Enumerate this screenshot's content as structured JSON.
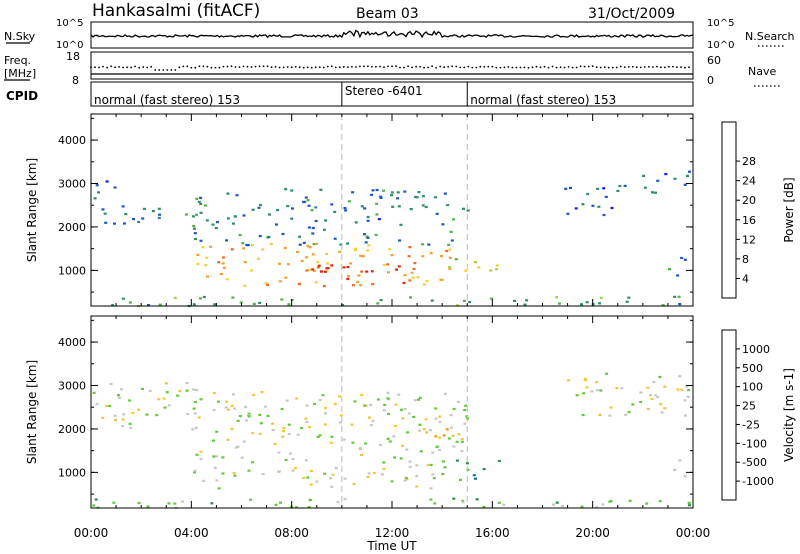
{
  "header": {
    "station": "Hankasalmi (fitACF)",
    "beam": "Beam 03",
    "date": "31/Oct/2009"
  },
  "strips": {
    "nsky_label": "N.Sky",
    "nsky_ticks": [
      "10^5",
      "10^0"
    ],
    "nsearch_label": "N.Search",
    "nsearch_ticks": [
      "10^5",
      "10^0"
    ],
    "freq_label": "Freq.",
    "freq_unit": "[MHz]",
    "freq_ticks": [
      "18",
      "8"
    ],
    "nave_label": "Nave",
    "nave_ticks": [
      "60",
      "0"
    ],
    "cpid_label": "CPID",
    "modes": [
      {
        "label": "normal (fast stereo) 153",
        "start_hour": 0,
        "end_hour": 10
      },
      {
        "label": "Stereo -6401",
        "start_hour": 10,
        "end_hour": 15
      },
      {
        "label": "normal (fast stereo) 153",
        "start_hour": 15,
        "end_hour": 24
      }
    ]
  },
  "chart_data": [
    {
      "type": "heatmap",
      "panel": "power",
      "xlabel": "Time UT",
      "ylabel": "Slant Range [km]",
      "x_ticks": [
        "00:00",
        "04:00",
        "08:00",
        "12:00",
        "16:00",
        "20:00",
        "00:00"
      ],
      "y_ticks": [
        "1000",
        "2000",
        "3000",
        "4000"
      ],
      "xlim": [
        0,
        24
      ],
      "ylim": [
        180,
        4600
      ],
      "colorbar": {
        "label": "Power [dB]",
        "ticks": [
          "4",
          "8",
          "12",
          "16",
          "20",
          "24",
          "28"
        ],
        "colors": [
          "#0a1af0",
          "#1e56c8",
          "#2f8c6e",
          "#56b04a",
          "#a8d23a",
          "#f0d23a",
          "#f5a02a",
          "#f06a1e",
          "#e02810"
        ]
      },
      "echo_regions": [
        {
          "t0": 0.0,
          "t1": 4.2,
          "r0": 2050,
          "r1": 2500,
          "level": 0.25
        },
        {
          "t0": 0.0,
          "t1": 1.0,
          "r0": 2500,
          "r1": 3100,
          "level": 0.15
        },
        {
          "t0": 4.0,
          "t1": 15.0,
          "r0": 1600,
          "r1": 2900,
          "level": 0.25
        },
        {
          "t0": 4.2,
          "t1": 14.5,
          "r0": 650,
          "r1": 1650,
          "level": 0.7
        },
        {
          "t0": 8.5,
          "t1": 12.5,
          "r0": 700,
          "r1": 1200,
          "level": 0.95
        },
        {
          "t0": 14.2,
          "t1": 16.3,
          "r0": 850,
          "r1": 1300,
          "level": 0.55
        },
        {
          "t0": 18.8,
          "t1": 21.5,
          "r0": 2300,
          "r1": 3000,
          "level": 0.2
        },
        {
          "t0": 21.5,
          "t1": 23.8,
          "r0": 2800,
          "r1": 3300,
          "level": 0.2
        },
        {
          "t0": 23.0,
          "t1": 24.0,
          "r0": 900,
          "r1": 1350,
          "level": 0.3
        },
        {
          "t0": 0.0,
          "t1": 24.0,
          "r0": 200,
          "r1": 420,
          "level": 0.35
        }
      ]
    },
    {
      "type": "heatmap",
      "panel": "velocity",
      "xlabel": "Time UT",
      "ylabel": "Slant Range [km]",
      "x_ticks": [
        "00:00",
        "04:00",
        "08:00",
        "12:00",
        "16:00",
        "20:00",
        "00:00"
      ],
      "y_ticks": [
        "1000",
        "2000",
        "3000",
        "4000"
      ],
      "xlim": [
        0,
        24
      ],
      "ylim": [
        180,
        4600
      ],
      "colorbar": {
        "label": "Velocity [m s-1]",
        "ticks": [
          "1000",
          "500",
          "100",
          "25",
          "-25",
          "-100",
          "-500",
          "-1000"
        ],
        "colors": [
          "#1432c8",
          "#1e6ea0",
          "#2f8c50",
          "#64c83c",
          "#c8c8c0",
          "#f0c83c",
          "#f0961e",
          "#f05a14",
          "#e01e0a"
        ]
      },
      "echo_regions": [
        {
          "t0": 0.0,
          "t1": 4.2,
          "r0": 2050,
          "r1": 3100,
          "level": 0.5
        },
        {
          "t0": 4.0,
          "t1": 15.0,
          "r0": 650,
          "r1": 2900,
          "level": 0.5
        },
        {
          "t0": 13.0,
          "t1": 15.0,
          "r0": 1800,
          "r1": 2100,
          "level": 0.72
        },
        {
          "t0": 14.4,
          "t1": 16.3,
          "r0": 850,
          "r1": 1300,
          "level": 0.28
        },
        {
          "t0": 18.8,
          "t1": 23.8,
          "r0": 2300,
          "r1": 3300,
          "level": 0.5
        },
        {
          "t0": 23.0,
          "t1": 24.0,
          "r0": 900,
          "r1": 1350,
          "level": 0.5
        },
        {
          "t0": 0.0,
          "t1": 24.0,
          "r0": 200,
          "r1": 420,
          "level": 0.4
        }
      ]
    }
  ]
}
